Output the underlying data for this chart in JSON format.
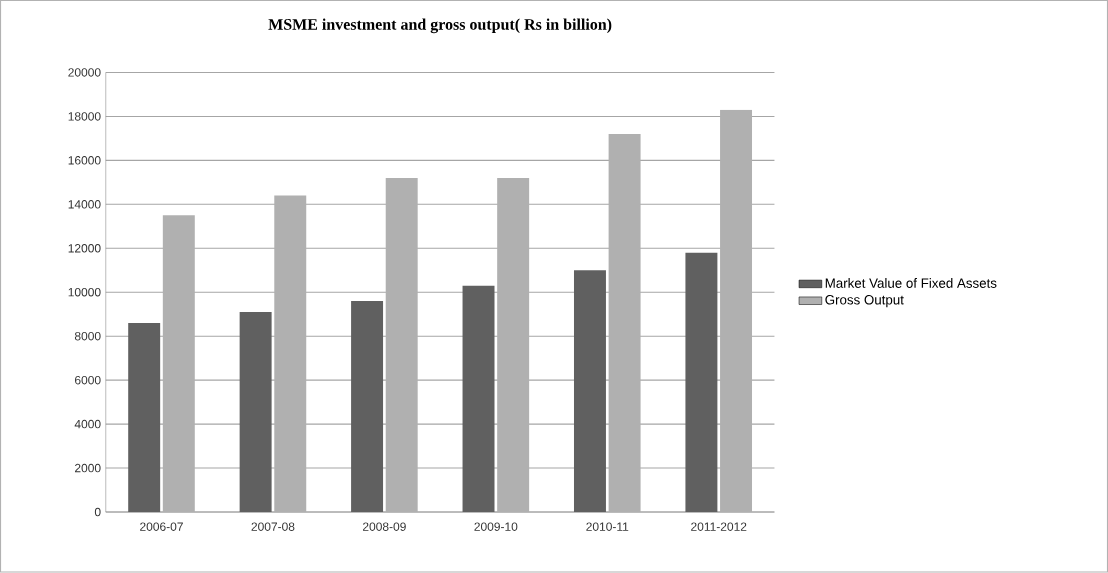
{
  "chart_data": {
    "type": "bar",
    "title": "MSME investment and gross output( Rs in billion)",
    "categories": [
      "2006-07",
      "2007-08",
      "2008-09",
      "2009-10",
      "2010-11",
      "2011-2012"
    ],
    "series": [
      {
        "name": "Market Value of Fixed Assets",
        "color": "#606060",
        "values": [
          8600,
          9100,
          9600,
          10300,
          11000,
          11800
        ]
      },
      {
        "name": "Gross Output",
        "color": "#b0b0b0",
        "values": [
          13500,
          14400,
          15200,
          15200,
          17200,
          18300
        ]
      }
    ],
    "ylim": [
      0,
      20000
    ],
    "yticks": [
      0,
      2000,
      4000,
      6000,
      8000,
      10000,
      12000,
      14000,
      16000,
      18000,
      20000
    ],
    "grid": "y",
    "legend": "right"
  }
}
